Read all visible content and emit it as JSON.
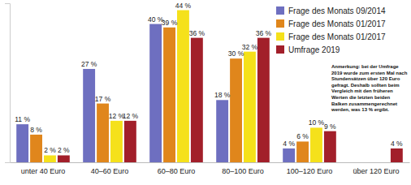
{
  "chart_data": {
    "type": "bar",
    "categories": [
      "unter 40 Euro",
      "40–60 Euro",
      "60–80 Euro",
      "80–100 Euro",
      "100–120 Euro",
      "über 120 Euro"
    ],
    "series": [
      {
        "name": "Frage des Monats 09/2014",
        "color": "#6e6fc0",
        "values": [
          11,
          27,
          40,
          18,
          4,
          null
        ],
        "value_labels": [
          "11 %",
          "27 %",
          "40 %",
          "18 %",
          "4 %",
          null
        ]
      },
      {
        "name": "Frage des Monats 01/2017",
        "color": "#e0861c",
        "values": [
          8,
          17,
          39,
          30,
          6,
          null
        ],
        "value_labels": [
          "8 %",
          "17 %",
          "39 %",
          "30 %",
          "6 %",
          null
        ]
      },
      {
        "name": "Frage des Monats 01/2017",
        "color": "#f5e11b",
        "values": [
          2,
          12,
          44,
          32,
          10,
          null
        ],
        "value_labels": [
          "2 %",
          "12 %",
          "44 %",
          "32 %",
          "10 %",
          null
        ]
      },
      {
        "name": "Umfrage 2019",
        "color": "#a21f2a",
        "values": [
          2,
          12,
          36,
          36,
          9,
          4
        ],
        "value_labels": [
          "2 %",
          "12 %",
          "36 %",
          "36 %",
          "9 %",
          "4 %"
        ]
      }
    ],
    "annotation": [
      "Anmerkung: bei der Umfrage",
      "2019 wurde zum ersten Mal nach",
      "Stundensätzen über 120 Euro",
      "gefragt. Deshalb sollten beim",
      "Vergleich mit den früheren",
      "Werten die letzten beiden",
      "Balken zusammengerechnet",
      "werden, was 13 % ergibt."
    ],
    "ylim": [
      0,
      46
    ],
    "yticks": [],
    "tick_labels": "x",
    "data_labels": true,
    "legend": "upper right",
    "grid": false
  }
}
